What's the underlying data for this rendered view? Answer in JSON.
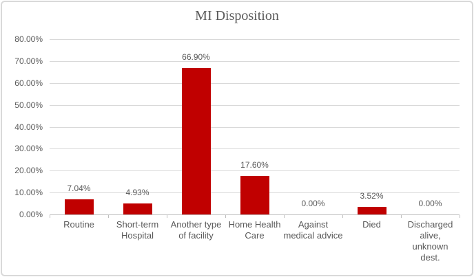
{
  "chart_data": {
    "type": "bar",
    "title": "MI Disposition",
    "categories": [
      "Routine",
      "Short-term\nHospital",
      "Another type\nof facility",
      "Home Health\nCare",
      "Against\nmedical advice",
      "Died",
      "Discharged\nalive,\nunknown\ndest."
    ],
    "values": [
      7.04,
      4.93,
      66.9,
      17.6,
      0.0,
      3.52,
      0.0
    ],
    "data_labels": [
      "7.04%",
      "4.93%",
      "66.90%",
      "17.60%",
      "0.00%",
      "3.52%",
      "0.00%"
    ],
    "y_tick_labels": [
      "0.00%",
      "10.00%",
      "20.00%",
      "30.00%",
      "40.00%",
      "50.00%",
      "60.00%",
      "70.00%",
      "80.00%"
    ],
    "ylim": [
      0,
      80
    ],
    "xlabel": "",
    "ylabel": "",
    "grid": true,
    "legend": "none",
    "colors": {
      "bar": "#c00000",
      "gridline": "#d9d9d9",
      "axis": "#bfbfbf",
      "text": "#595959",
      "title": "#595959",
      "frame_border": "#d9d9d9",
      "background": "#ffffff"
    }
  }
}
